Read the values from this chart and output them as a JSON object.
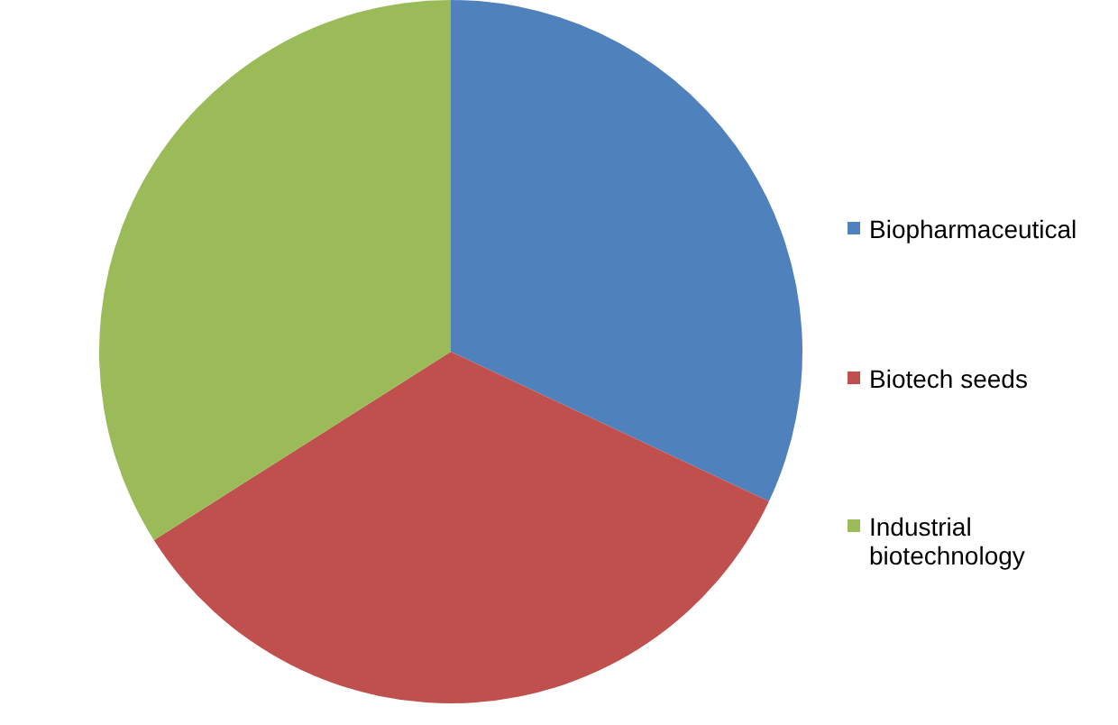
{
  "chart_data": {
    "type": "pie",
    "categories": [
      "Biopharmaceutical",
      "Biotech seeds",
      "Industrial biotechnology"
    ],
    "values": [
      32,
      34,
      34
    ],
    "colors": [
      "#4f81bd",
      "#c0504d",
      "#9bbb59"
    ],
    "legend": "right"
  }
}
